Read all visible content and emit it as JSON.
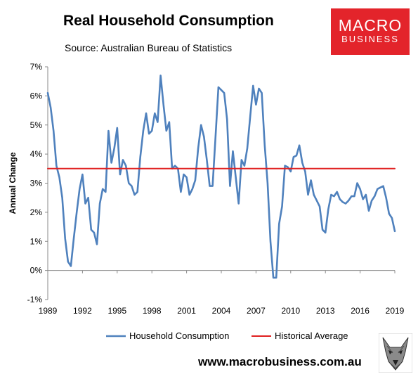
{
  "header": {
    "title": "Real Household Consumption",
    "subtitle": "Source: Australian Bureau of Statistics"
  },
  "logo": {
    "line1": "MACRO",
    "line2": "BUSINESS",
    "bg_color": "#e3242b"
  },
  "footer": {
    "website": "www.macrobusiness.com.au",
    "mascot_icon": "wolf-head-icon"
  },
  "chart_data": {
    "type": "line",
    "title": "Real Household Consumption",
    "xlabel": "",
    "ylabel": "Annual Change",
    "xlim": [
      1989,
      2019
    ],
    "ylim": [
      -1,
      7
    ],
    "yticks": [
      "-1%",
      "0%",
      "1%",
      "2%",
      "3%",
      "4%",
      "5%",
      "6%",
      "7%"
    ],
    "xticks": [
      "1989",
      "1992",
      "1995",
      "1998",
      "2001",
      "2004",
      "2007",
      "2010",
      "2013",
      "2016",
      "2019"
    ],
    "grid": false,
    "legend_position": "bottom",
    "series": [
      {
        "name": "Household Consumption",
        "color": "#4f81bd",
        "x": [
          1989.0,
          1989.25,
          1989.5,
          1989.75,
          1990.0,
          1990.25,
          1990.5,
          1990.75,
          1991.0,
          1991.25,
          1991.5,
          1991.75,
          1992.0,
          1992.25,
          1992.5,
          1992.75,
          1993.0,
          1993.25,
          1993.5,
          1993.75,
          1994.0,
          1994.25,
          1994.5,
          1994.75,
          1995.0,
          1995.25,
          1995.5,
          1995.75,
          1996.0,
          1996.25,
          1996.5,
          1996.75,
          1997.0,
          1997.25,
          1997.5,
          1997.75,
          1998.0,
          1998.25,
          1998.5,
          1998.75,
          1999.0,
          1999.25,
          1999.5,
          1999.75,
          2000.0,
          2000.25,
          2000.5,
          2000.75,
          2001.0,
          2001.25,
          2001.5,
          2001.75,
          2002.0,
          2002.25,
          2002.5,
          2002.75,
          2003.0,
          2003.25,
          2003.5,
          2003.75,
          2004.0,
          2004.25,
          2004.5,
          2004.75,
          2005.0,
          2005.25,
          2005.5,
          2005.75,
          2006.0,
          2006.25,
          2006.5,
          2006.75,
          2007.0,
          2007.25,
          2007.5,
          2007.75,
          2008.0,
          2008.25,
          2008.5,
          2008.75,
          2009.0,
          2009.25,
          2009.5,
          2009.75,
          2010.0,
          2010.25,
          2010.5,
          2010.75,
          2011.0,
          2011.25,
          2011.5,
          2011.75,
          2012.0,
          2012.25,
          2012.5,
          2012.75,
          2013.0,
          2013.25,
          2013.5,
          2013.75,
          2014.0,
          2014.25,
          2014.5,
          2014.75,
          2015.0,
          2015.25,
          2015.5,
          2015.75,
          2016.0,
          2016.25,
          2016.5,
          2016.75,
          2017.0,
          2017.25,
          2017.5,
          2017.75,
          2018.0,
          2018.25,
          2018.5,
          2018.75,
          2019.0
        ],
        "values": [
          6.1,
          5.6,
          4.8,
          3.6,
          3.2,
          2.5,
          1.1,
          0.3,
          0.15,
          1.1,
          2.0,
          2.8,
          3.3,
          2.3,
          2.5,
          1.4,
          1.3,
          0.9,
          2.3,
          2.8,
          2.7,
          4.8,
          3.7,
          4.2,
          4.9,
          3.3,
          3.8,
          3.6,
          3.0,
          2.9,
          2.6,
          2.7,
          3.9,
          4.8,
          5.4,
          4.7,
          4.8,
          5.4,
          5.1,
          6.7,
          5.7,
          4.8,
          5.1,
          3.5,
          3.6,
          3.5,
          2.7,
          3.3,
          3.2,
          2.6,
          2.8,
          3.1,
          4.2,
          5.0,
          4.6,
          3.8,
          2.9,
          2.9,
          4.6,
          6.3,
          6.2,
          6.1,
          5.2,
          2.9,
          4.1,
          3.2,
          2.3,
          3.8,
          3.6,
          4.2,
          5.3,
          6.35,
          5.7,
          6.25,
          6.1,
          4.3,
          3.0,
          1.0,
          -0.25,
          -0.25,
          1.6,
          2.2,
          3.6,
          3.55,
          3.4,
          3.9,
          3.95,
          4.3,
          3.7,
          3.4,
          2.6,
          3.1,
          2.6,
          2.4,
          2.2,
          1.4,
          1.3,
          2.1,
          2.6,
          2.55,
          2.7,
          2.45,
          2.35,
          2.3,
          2.4,
          2.55,
          2.55,
          3.0,
          2.8,
          2.45,
          2.6,
          2.05,
          2.4,
          2.55,
          2.8,
          2.85,
          2.9,
          2.5,
          1.95,
          1.8,
          1.35
        ]
      },
      {
        "name": "Historical Average",
        "color": "#e02020",
        "x": [
          1989,
          2019
        ],
        "values": [
          3.5,
          3.5
        ]
      }
    ]
  }
}
